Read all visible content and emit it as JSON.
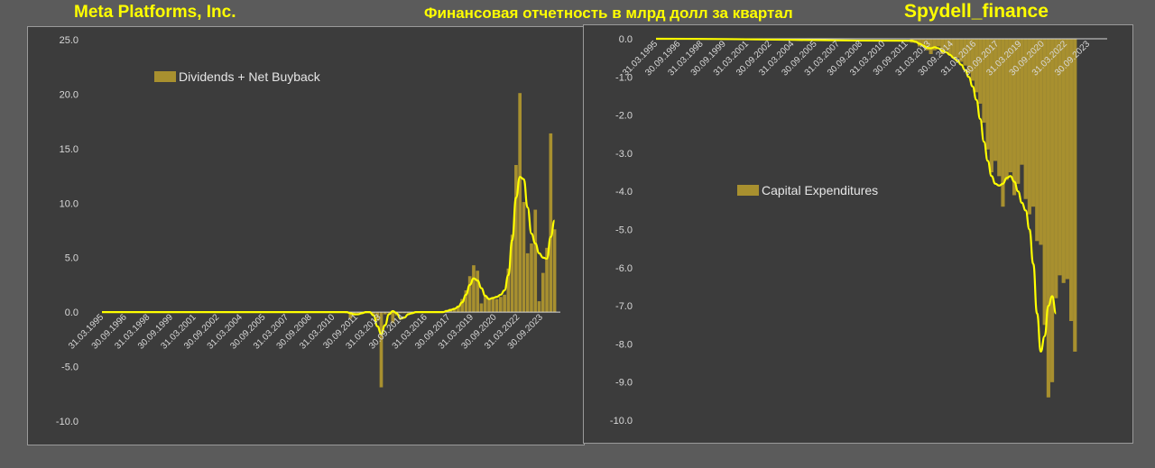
{
  "header": {
    "company": "Meta Platforms, Inc.",
    "subtitle": "Финансовая отчетность в млрд долл за квартал",
    "source": "Spydell_finance"
  },
  "colors": {
    "background": "#5b5b5b",
    "plot_background": "#3c3c3c",
    "bar": "#a8902f",
    "line": "#ffff00",
    "axis_text": "#d9d9d9",
    "header_text": "#ffff00"
  },
  "chart_data": [
    {
      "type": "bar",
      "legend": "Dividends + Net Buyback",
      "legend_position": "top-left",
      "grid": false,
      "ylim": [
        -10,
        25
      ],
      "y_ticks": [
        "25.0",
        "20.0",
        "15.0",
        "10.0",
        "5.0",
        "0.0",
        "-5.0",
        "-10.0"
      ],
      "x_tick_labels": [
        "31.03.1995",
        "30.09.1996",
        "31.03.1998",
        "30.09.1999",
        "31.03.2001",
        "30.09.2002",
        "31.03.2004",
        "30.09.2005",
        "31.03.2007",
        "30.09.2008",
        "31.03.2010",
        "30.09.2011",
        "31.03.2013",
        "30.09.2014",
        "31.03.2016",
        "30.09.2017",
        "31.03.2019",
        "30.09.2020",
        "31.03.2022",
        "30.09.2023"
      ],
      "x_start_quarter": "1995-Q1",
      "series": [
        {
          "name": "Dividends + Net Buyback",
          "kind": "bar",
          "start_quarter": "2010-Q4",
          "values": [
            -0.1,
            -0.6,
            -0.3,
            -0.1,
            -0.1,
            -0.1,
            -0.1,
            -0.2,
            -0.8,
            -6.9,
            -0.2,
            -0.1,
            -1.0,
            -0.3,
            -0.1,
            -0.1,
            -0.1,
            -0.1,
            0.0,
            0.0,
            0.0,
            0.0,
            0.0,
            0.0,
            0.0,
            0.1,
            0.2,
            0.3,
            0.3,
            0.6,
            1.2,
            2.0,
            3.3,
            4.3,
            3.8,
            0.8,
            1.5,
            1.2,
            1.3,
            1.2,
            1.4,
            1.6,
            4.0,
            7.1,
            13.5,
            20.1,
            10.1,
            5.4,
            6.3,
            9.4,
            1.0,
            3.6,
            5.9,
            16.4,
            7.6
          ]
        },
        {
          "kind": "line",
          "start_quarter": "2010-Q4",
          "values": [
            0.0,
            -0.1,
            -0.2,
            -0.2,
            -0.1,
            0.0,
            0.0,
            -0.3,
            -1.3,
            -2.0,
            -1.2,
            -0.2,
            0.1,
            -0.1,
            -0.6,
            -0.5,
            -0.2,
            -0.1,
            0.0,
            0.0,
            0.0,
            0.0,
            0.0,
            0.0,
            0.0,
            0.0,
            0.1,
            0.2,
            0.3,
            0.5,
            0.9,
            1.6,
            2.5,
            3.1,
            2.9,
            2.2,
            1.5,
            1.2,
            1.3,
            1.4,
            1.6,
            2.0,
            3.4,
            6.6,
            10.5,
            12.4,
            12.2,
            9.6,
            7.2,
            6.3,
            5.4,
            5.0,
            4.9,
            6.9,
            8.4
          ]
        }
      ]
    },
    {
      "type": "bar",
      "legend": "Capital Expenditures",
      "legend_position": "middle-left",
      "grid": false,
      "ylim": [
        -10,
        0
      ],
      "y_ticks": [
        "0.0",
        "-1.0",
        "-2.0",
        "-3.0",
        "-4.0",
        "-5.0",
        "-6.0",
        "-7.0",
        "-8.0",
        "-9.0",
        "-10.0"
      ],
      "x_tick_labels": [
        "31.03.1995",
        "30.09.1996",
        "31.03.1998",
        "30.09.1999",
        "31.03.2001",
        "30.09.2002",
        "31.03.2004",
        "30.09.2005",
        "31.03.2007",
        "30.09.2008",
        "31.03.2010",
        "30.09.2011",
        "31.03.2013",
        "30.09.2014",
        "31.03.2016",
        "30.09.2017",
        "31.03.2019",
        "30.09.2020",
        "31.03.2022",
        "30.09.2023"
      ],
      "x_start_quarter": "1995-Q1",
      "series": [
        {
          "name": "Capital Expenditures",
          "kind": "bar",
          "start_quarter": "2011-Q4",
          "values": [
            -0.1,
            -0.1,
            -0.2,
            -0.2,
            -0.3,
            -0.4,
            -0.3,
            -0.2,
            -0.4,
            -0.3,
            -0.4,
            -0.5,
            -0.5,
            -0.6,
            -0.7,
            -0.9,
            -1.1,
            -1.4,
            -1.7,
            -2.2,
            -2.9,
            -3.5,
            -3.2,
            -3.6,
            -4.4,
            -3.7,
            -3.5,
            -4.1,
            -3.8,
            -3.3,
            -4.2,
            -4.6,
            -4.4,
            -5.3,
            -5.4,
            -7.5,
            -9.4,
            -9.0,
            -6.8,
            -6.2,
            -6.4,
            -6.3,
            -7.4,
            -8.2
          ],
          "fill_to_zero": true
        },
        {
          "kind": "line",
          "start_quarter": "2011-Q4",
          "values": [
            -0.05,
            -0.08,
            -0.13,
            -0.18,
            -0.24,
            -0.25,
            -0.22,
            -0.25,
            -0.32,
            -0.35,
            -0.42,
            -0.5,
            -0.58,
            -0.68,
            -0.82,
            -1.0,
            -1.25,
            -1.6,
            -2.1,
            -2.7,
            -3.2,
            -3.6,
            -3.8,
            -3.85,
            -3.8,
            -3.65,
            -3.6,
            -3.75,
            -4.0,
            -4.3,
            -4.5,
            -5.0,
            -5.9,
            -7.2,
            -8.2,
            -7.8,
            -7.0,
            -6.75,
            -7.2
          ]
        }
      ]
    }
  ]
}
